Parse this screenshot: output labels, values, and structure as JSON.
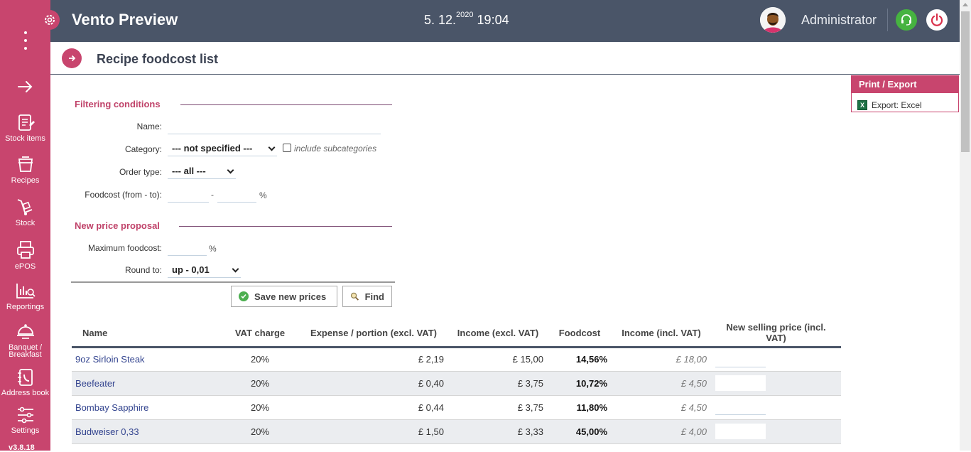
{
  "app": {
    "title": "Vento Preview",
    "date_main": "5. 12.",
    "date_year": "2020",
    "time": "19:04",
    "user": "Administrator"
  },
  "sidebar": {
    "items": [
      {
        "label": "Stock items",
        "icon": "stock-items-icon"
      },
      {
        "label": "Recipes",
        "icon": "recipes-icon"
      },
      {
        "label": "Stock",
        "icon": "stock-icon"
      },
      {
        "label": "ePOS",
        "icon": "epos-icon"
      },
      {
        "label": "Reportings",
        "icon": "reportings-icon"
      },
      {
        "label": "Banquet /",
        "label2": "Breakfast",
        "icon": "banquet-icon"
      },
      {
        "label": "Address book",
        "icon": "address-book-icon"
      },
      {
        "label": "Settings",
        "icon": "settings-icon"
      }
    ],
    "version": "v3.8.18"
  },
  "page": {
    "title": "Recipe foodcost list"
  },
  "export": {
    "heading": "Print / Export",
    "excel_label": "Export: Excel"
  },
  "filter": {
    "heading": "Filtering conditions",
    "name_label": "Name:",
    "category_label": "Category:",
    "category_value": "--- not specified ---",
    "include_sub_label": "include subcategories",
    "order_type_label": "Order type:",
    "order_type_value": "--- all ---",
    "foodcost_label": "Foodcost (from - to):",
    "range_dash": "-",
    "pct": "%"
  },
  "proposal": {
    "heading": "New price proposal",
    "max_foodcost_label": "Maximum foodcost:",
    "pct": "%",
    "round_label": "Round to:",
    "round_value": "up - 0,01"
  },
  "buttons": {
    "save": "Save new prices",
    "find": "Find"
  },
  "table": {
    "headers": [
      "Name",
      "VAT charge",
      "Expense / portion (excl. VAT)",
      "Income (excl. VAT)",
      "Foodcost",
      "Income (incl. VAT)",
      "New selling price (incl. VAT)"
    ],
    "rows": [
      {
        "name": "9oz Sirloin Steak",
        "vat": "20%",
        "expense": "£ 2,19",
        "income_excl": "£ 15,00",
        "foodcost": "14,56%",
        "income_incl": "£ 18,00"
      },
      {
        "name": "Beefeater",
        "vat": "20%",
        "expense": "£ 0,40",
        "income_excl": "£ 3,75",
        "foodcost": "10,72%",
        "income_incl": "£ 4,50"
      },
      {
        "name": "Bombay Sapphire",
        "vat": "20%",
        "expense": "£ 0,44",
        "income_excl": "£ 3,75",
        "foodcost": "11,80%",
        "income_incl": "£ 4,50"
      },
      {
        "name": "Budweiser 0,33",
        "vat": "20%",
        "expense": "£ 1,50",
        "income_excl": "£ 3,33",
        "foodcost": "45,00%",
        "income_incl": "£ 4,00"
      }
    ]
  },
  "colors": {
    "sidebar": "#c8456e",
    "header": "#4a5568",
    "accent": "#c0436a",
    "support": "#46b340"
  }
}
